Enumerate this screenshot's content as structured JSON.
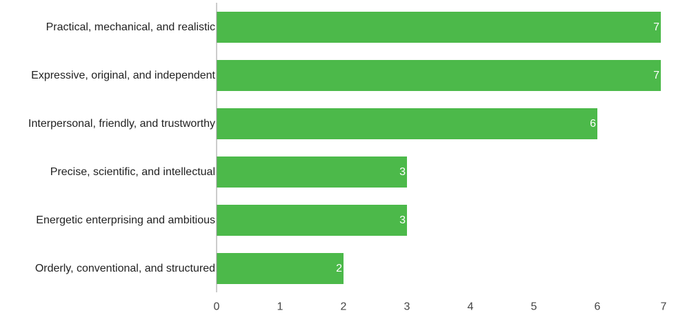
{
  "chart_data": {
    "type": "bar",
    "orientation": "horizontal",
    "categories": [
      "Practical, mechanical, and realistic",
      "Expressive, original, and independent",
      "Interpersonal, friendly, and trustworthy",
      "Precise, scientific, and intellectual",
      "Energetic enterprising and ambitious",
      "Orderly, conventional, and structured"
    ],
    "values": [
      7,
      7,
      6,
      3,
      3,
      2
    ],
    "data_labels": [
      "7",
      "7",
      "6",
      "3",
      "3",
      "2"
    ],
    "xlim": [
      0,
      7
    ],
    "xticks": [
      "0",
      "1",
      "2",
      "3",
      "4",
      "5",
      "6",
      "7"
    ],
    "bar_color": "#4cb94a",
    "axis_color": "#999999",
    "grid": false,
    "legend": "none"
  }
}
